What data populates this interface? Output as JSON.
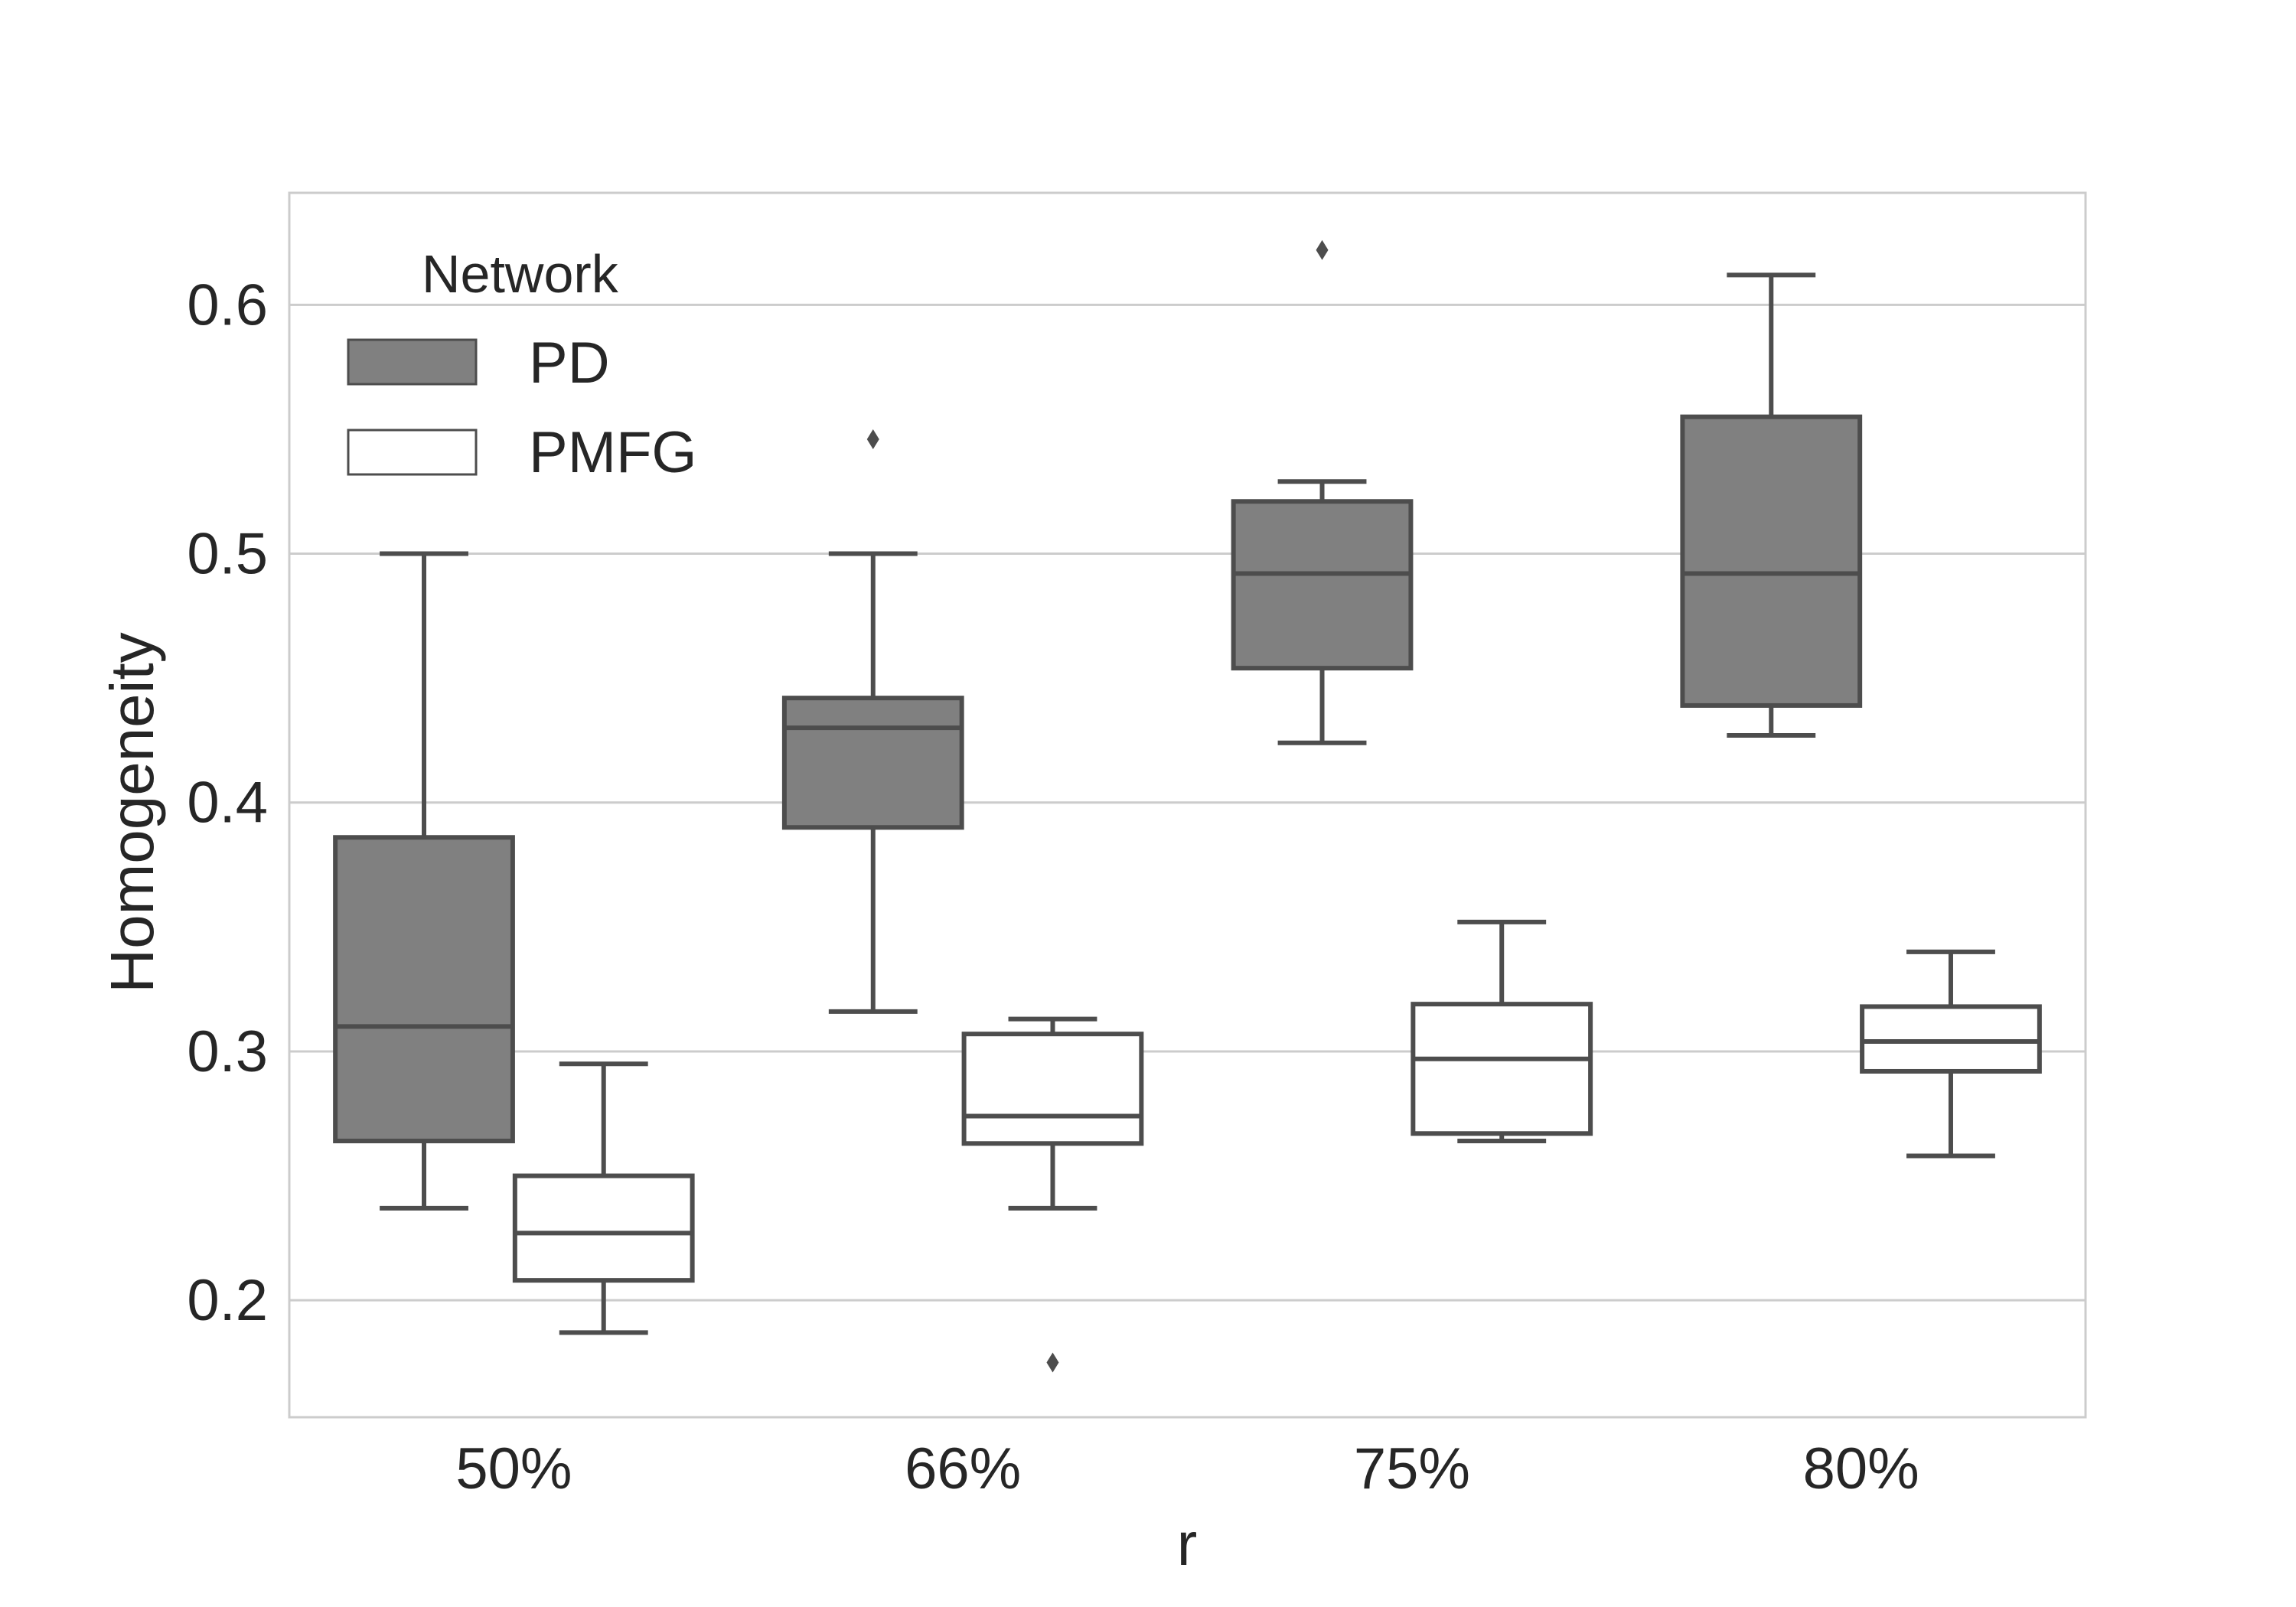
{
  "chart_data": {
    "type": "boxplot",
    "title": "",
    "xlabel": "r",
    "ylabel": "Homogeneity",
    "categories": [
      "50%",
      "66%",
      "75%",
      "80%"
    ],
    "ylim": [
      0.153,
      0.645
    ],
    "yticks": [
      0.2,
      0.3,
      0.4,
      0.5,
      0.6
    ],
    "ytick_labels": [
      "0.2",
      "0.3",
      "0.4",
      "0.5",
      "0.6"
    ],
    "grid": true,
    "legend": {
      "title": "Network",
      "position": "top-left",
      "entries": [
        {
          "name": "PD",
          "color": "#808080"
        },
        {
          "name": "PMFG",
          "color": "#ffffff"
        }
      ]
    },
    "series": [
      {
        "name": "PD",
        "color": "#808080",
        "boxes": [
          {
            "category": "50%",
            "whisker_low": 0.237,
            "q1": 0.264,
            "median": 0.31,
            "q3": 0.386,
            "whisker_high": 0.5,
            "outliers": []
          },
          {
            "category": "66%",
            "whisker_low": 0.316,
            "q1": 0.39,
            "median": 0.43,
            "q3": 0.442,
            "whisker_high": 0.5,
            "outliers": [
              0.546
            ]
          },
          {
            "category": "75%",
            "whisker_low": 0.424,
            "q1": 0.454,
            "median": 0.492,
            "q3": 0.521,
            "whisker_high": 0.529,
            "outliers": [
              0.622
            ]
          },
          {
            "category": "80%",
            "whisker_low": 0.427,
            "q1": 0.439,
            "median": 0.492,
            "q3": 0.555,
            "whisker_high": 0.612,
            "outliers": []
          }
        ]
      },
      {
        "name": "PMFG",
        "color": "#ffffff",
        "boxes": [
          {
            "category": "50%",
            "whisker_low": 0.187,
            "q1": 0.208,
            "median": 0.227,
            "q3": 0.25,
            "whisker_high": 0.295,
            "outliers": []
          },
          {
            "category": "66%",
            "whisker_low": 0.237,
            "q1": 0.263,
            "median": 0.274,
            "q3": 0.307,
            "whisker_high": 0.313,
            "outliers": [
              0.175
            ]
          },
          {
            "category": "75%",
            "whisker_low": 0.264,
            "q1": 0.267,
            "median": 0.297,
            "q3": 0.319,
            "whisker_high": 0.352,
            "outliers": []
          },
          {
            "category": "80%",
            "whisker_low": 0.258,
            "q1": 0.292,
            "median": 0.304,
            "q3": 0.318,
            "whisker_high": 0.34,
            "outliers": []
          }
        ]
      }
    ]
  }
}
